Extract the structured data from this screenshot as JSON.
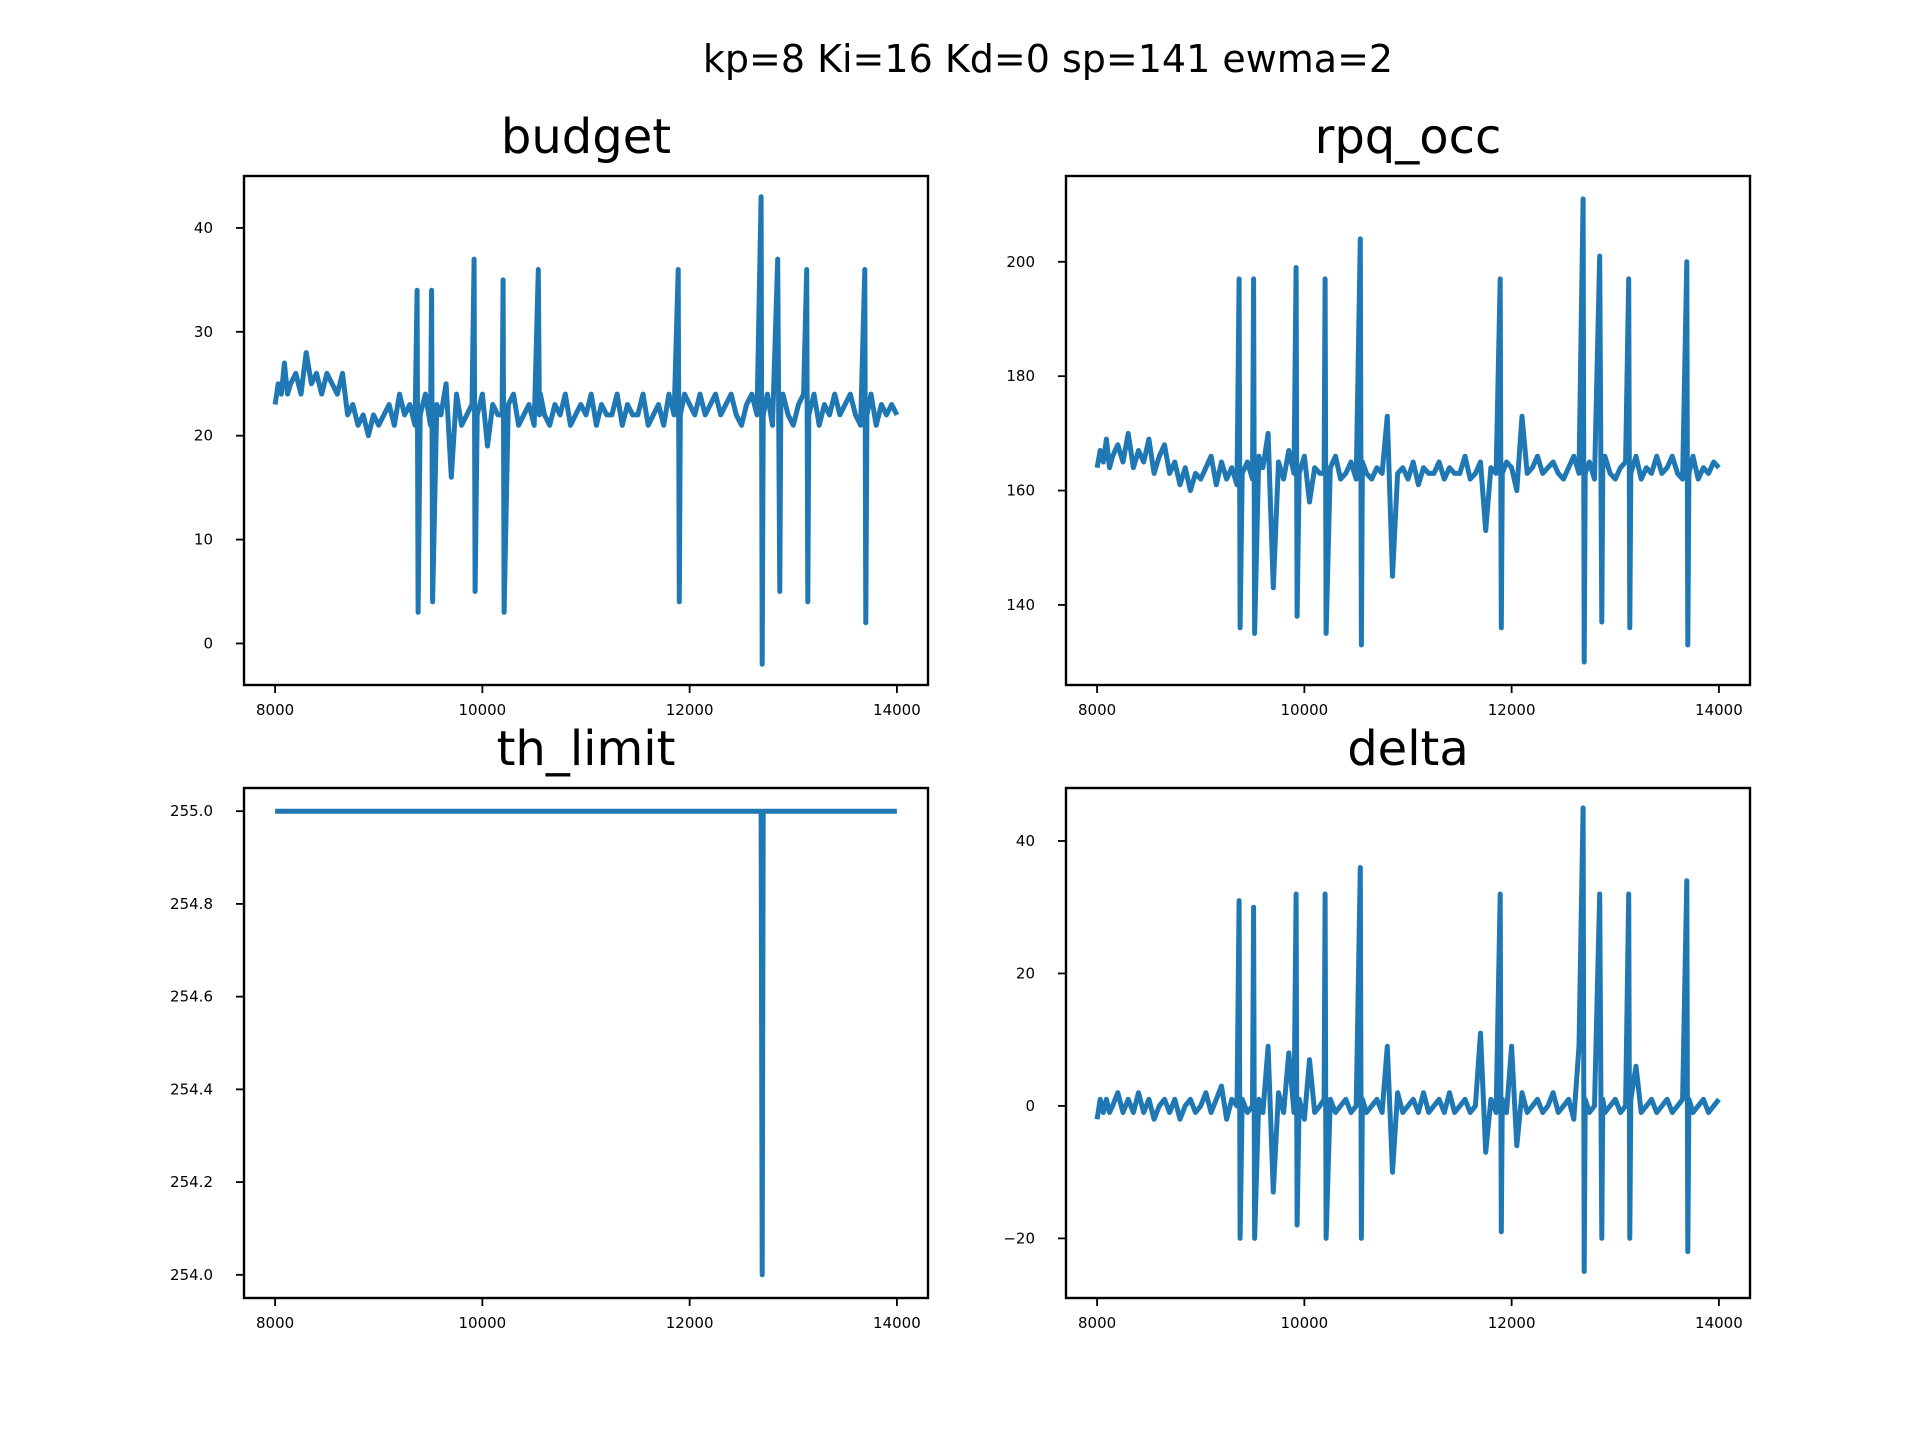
{
  "figure": {
    "suptitle": "kp=8 Ki=16 Kd=0 sp=141 ewma=2",
    "line_color": "#1f77b4"
  },
  "chart_data": [
    {
      "type": "line",
      "title": "budget",
      "xlabel": "",
      "ylabel": "",
      "xlim": [
        7700,
        14300
      ],
      "ylim": [
        -4,
        45
      ],
      "xticks": [
        8000,
        10000,
        12000,
        14000
      ],
      "yticks": [
        0,
        10,
        20,
        30,
        40
      ],
      "grid": false,
      "series": [
        {
          "x": [
            8000,
            8030,
            8060,
            8090,
            8120,
            8150,
            8200,
            8250,
            8300,
            8350,
            8400,
            8450,
            8500,
            8550,
            8600,
            8650,
            8700,
            8750,
            8800,
            8850,
            8900,
            8950,
            9000,
            9050,
            9100,
            9150,
            9200,
            9250,
            9300,
            9350,
            9370,
            9380,
            9400,
            9450,
            9500,
            9510,
            9520,
            9560,
            9600,
            9650,
            9700,
            9750,
            9800,
            9850,
            9900,
            9920,
            9930,
            9950,
            10000,
            10050,
            10100,
            10150,
            10190,
            10200,
            10210,
            10250,
            10300,
            10350,
            10400,
            10450,
            10500,
            10540,
            10550,
            10560,
            10600,
            10650,
            10700,
            10750,
            10800,
            10850,
            10900,
            10950,
            11000,
            11050,
            11100,
            11150,
            11200,
            11250,
            11300,
            11350,
            11400,
            11450,
            11500,
            11550,
            11600,
            11650,
            11700,
            11750,
            11800,
            11850,
            11890,
            11900,
            11910,
            11950,
            12000,
            12050,
            12100,
            12150,
            12200,
            12250,
            12300,
            12350,
            12400,
            12450,
            12500,
            12550,
            12600,
            12650,
            12690,
            12700,
            12710,
            12750,
            12800,
            12850,
            12870,
            12880,
            12900,
            12950,
            13000,
            13050,
            13100,
            13130,
            13140,
            13150,
            13200,
            13250,
            13300,
            13350,
            13400,
            13450,
            13500,
            13550,
            13600,
            13650,
            13690,
            13700,
            13710,
            13750,
            13800,
            13850,
            13900,
            13950,
            14000
          ],
          "values": [
            23,
            25,
            24,
            27,
            24,
            25,
            26,
            24,
            28,
            25,
            26,
            24,
            26,
            25,
            24,
            26,
            22,
            23,
            21,
            22,
            20,
            22,
            21,
            22,
            23,
            21,
            24,
            22,
            23,
            21,
            34,
            3,
            22,
            24,
            21,
            34,
            4,
            23,
            22,
            25,
            16,
            24,
            21,
            22,
            23,
            37,
            5,
            22,
            24,
            19,
            23,
            22,
            22,
            35,
            3,
            23,
            24,
            21,
            22,
            23,
            21,
            36,
            22,
            24,
            22,
            21,
            23,
            22,
            24,
            21,
            22,
            23,
            22,
            24,
            21,
            23,
            22,
            22,
            24,
            21,
            23,
            22,
            22,
            24,
            21,
            22,
            23,
            21,
            24,
            22,
            36,
            4,
            22,
            24,
            23,
            22,
            24,
            22,
            23,
            24,
            22,
            23,
            24,
            22,
            21,
            23,
            24,
            22,
            43,
            -2,
            22,
            24,
            21,
            37,
            5,
            23,
            24,
            22,
            21,
            23,
            24,
            36,
            4,
            22,
            24,
            21,
            23,
            22,
            24,
            22,
            23,
            24,
            22,
            21,
            36,
            2,
            22,
            24,
            21,
            23,
            22,
            23,
            22
          ]
        }
      ]
    },
    {
      "type": "line",
      "title": "rpq_occ",
      "xlabel": "",
      "ylabel": "",
      "xlim": [
        7700,
        14300
      ],
      "ylim": [
        126,
        215
      ],
      "xticks": [
        8000,
        10000,
        12000,
        14000
      ],
      "yticks": [
        140,
        160,
        180,
        200
      ],
      "grid": false,
      "series": [
        {
          "x": [
            8000,
            8030,
            8060,
            8090,
            8120,
            8150,
            8200,
            8250,
            8300,
            8350,
            8400,
            8450,
            8500,
            8550,
            8600,
            8650,
            8700,
            8750,
            8800,
            8850,
            8900,
            8950,
            9000,
            9050,
            9100,
            9150,
            9200,
            9250,
            9300,
            9350,
            9370,
            9380,
            9400,
            9450,
            9500,
            9510,
            9520,
            9560,
            9600,
            9650,
            9700,
            9750,
            9800,
            9850,
            9900,
            9920,
            9930,
            9950,
            10000,
            10050,
            10100,
            10150,
            10190,
            10200,
            10210,
            10250,
            10300,
            10350,
            10400,
            10450,
            10500,
            10540,
            10550,
            10560,
            10600,
            10650,
            10700,
            10750,
            10800,
            10850,
            10900,
            10950,
            11000,
            11050,
            11100,
            11150,
            11200,
            11250,
            11300,
            11350,
            11400,
            11450,
            11500,
            11550,
            11600,
            11650,
            11700,
            11750,
            11800,
            11850,
            11890,
            11900,
            11910,
            11950,
            12000,
            12050,
            12100,
            12150,
            12200,
            12250,
            12300,
            12350,
            12400,
            12450,
            12500,
            12550,
            12600,
            12650,
            12690,
            12700,
            12710,
            12750,
            12800,
            12850,
            12870,
            12880,
            12900,
            12950,
            13000,
            13050,
            13100,
            13130,
            13140,
            13150,
            13200,
            13250,
            13300,
            13350,
            13400,
            13450,
            13500,
            13550,
            13600,
            13650,
            13690,
            13700,
            13710,
            13750,
            13800,
            13850,
            13900,
            13950,
            14000
          ],
          "values": [
            164,
            167,
            165,
            169,
            164,
            166,
            168,
            165,
            170,
            164,
            167,
            165,
            169,
            163,
            166,
            168,
            163,
            165,
            161,
            164,
            160,
            163,
            162,
            164,
            166,
            161,
            165,
            162,
            164,
            161,
            197,
            136,
            163,
            165,
            162,
            197,
            135,
            166,
            164,
            170,
            143,
            165,
            162,
            167,
            163,
            199,
            138,
            163,
            166,
            158,
            164,
            163,
            163,
            197,
            135,
            164,
            166,
            162,
            163,
            165,
            162,
            204,
            133,
            165,
            163,
            162,
            164,
            163,
            173,
            145,
            163,
            164,
            162,
            165,
            161,
            164,
            163,
            163,
            165,
            162,
            164,
            163,
            163,
            166,
            162,
            163,
            165,
            153,
            164,
            163,
            197,
            136,
            163,
            165,
            164,
            160,
            173,
            163,
            164,
            166,
            163,
            164,
            165,
            163,
            162,
            164,
            166,
            163,
            211,
            130,
            163,
            165,
            162,
            201,
            137,
            164,
            166,
            163,
            162,
            164,
            165,
            197,
            136,
            163,
            166,
            162,
            164,
            163,
            166,
            163,
            164,
            166,
            163,
            162,
            200,
            133,
            163,
            166,
            162,
            164,
            163,
            165,
            164
          ]
        }
      ]
    },
    {
      "type": "line",
      "title": "th_limit",
      "xlabel": "",
      "ylabel": "",
      "xlim": [
        7700,
        14300
      ],
      "ylim": [
        253.95,
        255.05
      ],
      "xticks": [
        8000,
        10000,
        12000,
        14000
      ],
      "yticks": [
        254.0,
        254.2,
        254.4,
        254.6,
        254.8,
        255.0
      ],
      "ytick_labels": [
        "254.0",
        "254.2",
        "254.4",
        "254.6",
        "254.8",
        "255.0"
      ],
      "grid": false,
      "series": [
        {
          "x": [
            8000,
            12690,
            12700,
            12710,
            14000
          ],
          "values": [
            255.0,
            255.0,
            254.0,
            255.0,
            255.0
          ]
        }
      ]
    },
    {
      "type": "line",
      "title": "delta",
      "xlabel": "",
      "ylabel": "",
      "xlim": [
        7700,
        14300
      ],
      "ylim": [
        -29,
        48
      ],
      "xticks": [
        8000,
        10000,
        12000,
        14000
      ],
      "yticks": [
        -20,
        0,
        20,
        40
      ],
      "ytick_labels": [
        "−20",
        "0",
        "20",
        "40"
      ],
      "grid": false,
      "series": [
        {
          "x": [
            8000,
            8030,
            8060,
            8090,
            8120,
            8150,
            8200,
            8250,
            8300,
            8350,
            8400,
            8450,
            8500,
            8550,
            8600,
            8650,
            8700,
            8750,
            8800,
            8850,
            8900,
            8950,
            9000,
            9050,
            9100,
            9150,
            9200,
            9250,
            9300,
            9350,
            9370,
            9380,
            9400,
            9450,
            9500,
            9510,
            9520,
            9560,
            9600,
            9650,
            9700,
            9750,
            9800,
            9850,
            9900,
            9920,
            9930,
            9950,
            10000,
            10050,
            10100,
            10150,
            10190,
            10200,
            10210,
            10250,
            10300,
            10350,
            10400,
            10450,
            10500,
            10540,
            10550,
            10560,
            10600,
            10650,
            10700,
            10750,
            10800,
            10850,
            10900,
            10950,
            11000,
            11050,
            11100,
            11150,
            11200,
            11250,
            11300,
            11350,
            11400,
            11450,
            11500,
            11550,
            11600,
            11650,
            11700,
            11750,
            11800,
            11850,
            11890,
            11900,
            11910,
            11950,
            12000,
            12050,
            12100,
            12150,
            12200,
            12250,
            12300,
            12350,
            12400,
            12450,
            12500,
            12550,
            12600,
            12650,
            12690,
            12700,
            12710,
            12750,
            12800,
            12850,
            12870,
            12880,
            12900,
            12950,
            13000,
            13050,
            13100,
            13130,
            13140,
            13150,
            13200,
            13250,
            13300,
            13350,
            13400,
            13450,
            13500,
            13550,
            13600,
            13650,
            13690,
            13700,
            13710,
            13750,
            13800,
            13850,
            13900,
            13950,
            14000
          ],
          "values": [
            -2,
            1,
            -1,
            1,
            -1,
            0,
            2,
            -1,
            1,
            -1,
            2,
            -1,
            1,
            -2,
            0,
            1,
            -1,
            1,
            -2,
            0,
            1,
            -1,
            0,
            2,
            -1,
            1,
            3,
            -2,
            1,
            0,
            31,
            -20,
            1,
            -1,
            0,
            30,
            -20,
            1,
            -1,
            9,
            -13,
            2,
            -1,
            8,
            -1,
            32,
            -18,
            1,
            -2,
            7,
            -1,
            0,
            1,
            32,
            -20,
            1,
            -1,
            0,
            1,
            -1,
            0,
            36,
            -20,
            1,
            -1,
            0,
            1,
            -1,
            9,
            -10,
            2,
            -1,
            0,
            1,
            -1,
            2,
            -1,
            0,
            1,
            -1,
            2,
            -1,
            0,
            1,
            -1,
            0,
            11,
            -7,
            1,
            -1,
            32,
            -19,
            1,
            -1,
            9,
            -6,
            2,
            -1,
            0,
            1,
            -1,
            0,
            2,
            -1,
            0,
            1,
            -2,
            9,
            45,
            -25,
            1,
            -1,
            0,
            32,
            -20,
            1,
            -1,
            0,
            1,
            -1,
            0,
            32,
            -20,
            1,
            6,
            -1,
            0,
            1,
            -1,
            0,
            1,
            -1,
            0,
            1,
            34,
            -22,
            1,
            -1,
            0,
            1,
            -1,
            0,
            1
          ]
        }
      ]
    }
  ]
}
